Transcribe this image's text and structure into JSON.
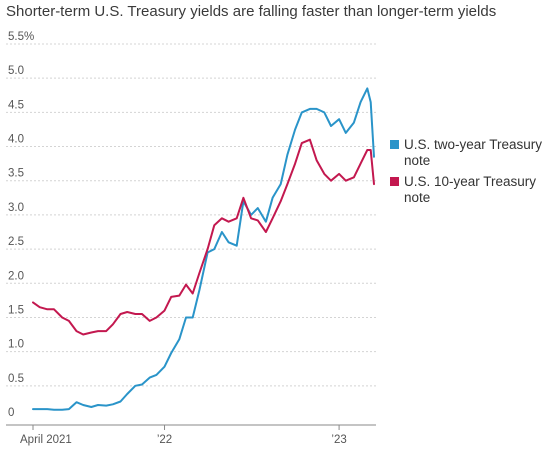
{
  "chart_data": {
    "type": "line",
    "title": "Shorter-term U.S. Treasury yields are falling faster than longer-term yields",
    "xlabel": "",
    "ylabel": "",
    "ylim": [
      0,
      5.5
    ],
    "x_tick_labels": [
      "April 2021",
      "’22",
      "’23"
    ],
    "y_tick_labels": [
      "5.5%",
      "5.0",
      "4.5",
      "4.0",
      "3.5",
      "3.0",
      "2.5",
      "2.0",
      "1.5",
      "1.0",
      "0.5",
      "0"
    ],
    "y_tick_values": [
      5.5,
      5.0,
      4.5,
      4.0,
      3.5,
      3.0,
      2.5,
      2.0,
      1.5,
      1.0,
      0.5,
      0
    ],
    "grid": true,
    "legend_position": "right",
    "series": [
      {
        "name": "U.S. two-year Treasury note",
        "color": "#2a94c9",
        "x": [
          "2021-04-01",
          "2021-04-15",
          "2021-05-01",
          "2021-05-15",
          "2021-06-01",
          "2021-06-15",
          "2021-07-01",
          "2021-07-15",
          "2021-08-01",
          "2021-08-15",
          "2021-09-01",
          "2021-09-15",
          "2021-10-01",
          "2021-10-15",
          "2021-11-01",
          "2021-11-15",
          "2021-12-01",
          "2021-12-15",
          "2022-01-01",
          "2022-01-15",
          "2022-02-01",
          "2022-02-15",
          "2022-03-01",
          "2022-03-15",
          "2022-04-01",
          "2022-04-15",
          "2022-05-01",
          "2022-05-15",
          "2022-06-01",
          "2022-06-15",
          "2022-07-01",
          "2022-07-15",
          "2022-08-01",
          "2022-08-15",
          "2022-09-01",
          "2022-09-15",
          "2022-10-01",
          "2022-10-15",
          "2022-11-01",
          "2022-11-15",
          "2022-12-01",
          "2022-12-15",
          "2023-01-01",
          "2023-01-15",
          "2023-02-01",
          "2023-02-15",
          "2023-03-01",
          "2023-03-08",
          "2023-03-15"
        ],
        "values": [
          0.16,
          0.16,
          0.16,
          0.15,
          0.15,
          0.16,
          0.26,
          0.22,
          0.19,
          0.22,
          0.21,
          0.23,
          0.27,
          0.38,
          0.5,
          0.52,
          0.62,
          0.66,
          0.78,
          0.98,
          1.18,
          1.5,
          1.5,
          1.9,
          2.45,
          2.5,
          2.75,
          2.6,
          2.55,
          3.2,
          3.0,
          3.1,
          2.9,
          3.25,
          3.45,
          3.88,
          4.25,
          4.5,
          4.55,
          4.55,
          4.5,
          4.3,
          4.4,
          4.2,
          4.35,
          4.65,
          4.85,
          4.65,
          3.85
        ]
      },
      {
        "name": "U.S. 10-year Treasury note",
        "color": "#c3184f",
        "x": [
          "2021-04-01",
          "2021-04-15",
          "2021-05-01",
          "2021-05-15",
          "2021-06-01",
          "2021-06-15",
          "2021-07-01",
          "2021-07-15",
          "2021-08-01",
          "2021-08-15",
          "2021-09-01",
          "2021-09-15",
          "2021-10-01",
          "2021-10-15",
          "2021-11-01",
          "2021-11-15",
          "2021-12-01",
          "2021-12-15",
          "2022-01-01",
          "2022-01-15",
          "2022-02-01",
          "2022-02-15",
          "2022-03-01",
          "2022-03-15",
          "2022-04-01",
          "2022-04-15",
          "2022-05-01",
          "2022-05-15",
          "2022-06-01",
          "2022-06-15",
          "2022-07-01",
          "2022-07-15",
          "2022-08-01",
          "2022-08-15",
          "2022-09-01",
          "2022-09-15",
          "2022-10-01",
          "2022-10-15",
          "2022-11-01",
          "2022-11-15",
          "2022-12-01",
          "2022-12-15",
          "2023-01-01",
          "2023-01-15",
          "2023-02-01",
          "2023-02-15",
          "2023-03-01",
          "2023-03-08",
          "2023-03-15"
        ],
        "values": [
          1.72,
          1.65,
          1.62,
          1.62,
          1.5,
          1.45,
          1.3,
          1.25,
          1.28,
          1.3,
          1.3,
          1.4,
          1.55,
          1.58,
          1.55,
          1.55,
          1.45,
          1.5,
          1.6,
          1.8,
          1.82,
          1.98,
          1.85,
          2.15,
          2.5,
          2.85,
          2.95,
          2.9,
          2.95,
          3.25,
          2.95,
          2.92,
          2.75,
          2.95,
          3.2,
          3.45,
          3.75,
          4.05,
          4.1,
          3.8,
          3.6,
          3.5,
          3.6,
          3.5,
          3.55,
          3.75,
          3.95,
          3.95,
          3.45
        ]
      }
    ]
  }
}
